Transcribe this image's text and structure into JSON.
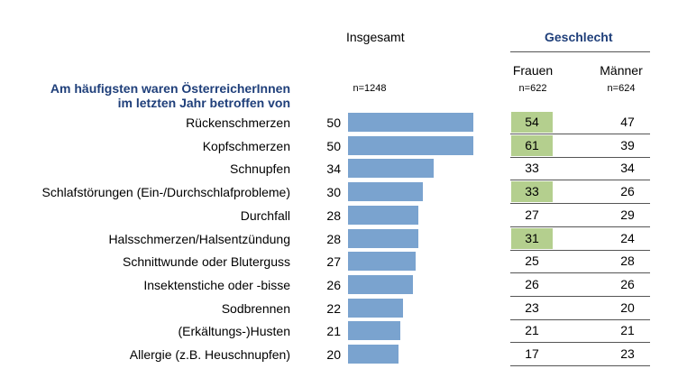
{
  "chart_data": {
    "type": "bar",
    "question": [
      "Am häufigsten waren ÖsterreicherInnen",
      "im letzten Jahr betroffen von"
    ],
    "columns": {
      "total": "Insgesamt",
      "gender": "Geschlecht",
      "female": "Frauen",
      "male": "Männer"
    },
    "n": {
      "total": "n=1248",
      "female": "n=622",
      "male": "n=624"
    },
    "categories": [
      "Rückenschmerzen",
      "Kopfschmerzen",
      "Schnupfen",
      "Schlafstörungen (Ein-/Durchschlafprobleme)",
      "Durchfall",
      "Halsschmerzen/Halsentzündung",
      "Schnittwunde oder Bluterguss",
      "Insektenstiche oder -bisse",
      "Sodbrennen",
      "(Erkältungs-)Husten",
      "Allergie (z.B. Heuschnupfen)"
    ],
    "total": [
      50,
      50,
      34,
      30,
      28,
      28,
      27,
      26,
      22,
      21,
      20
    ],
    "female": [
      54,
      61,
      33,
      33,
      27,
      31,
      25,
      26,
      23,
      21,
      17
    ],
    "male": [
      47,
      39,
      34,
      26,
      29,
      24,
      28,
      26,
      20,
      21,
      23
    ],
    "female_highlighted": [
      true,
      true,
      false,
      true,
      false,
      true,
      false,
      false,
      false,
      false,
      false
    ],
    "bar_color": "#7aa3cf",
    "highlight_color": "#b4cf8e",
    "accent_color": "#1f3f7a"
  }
}
